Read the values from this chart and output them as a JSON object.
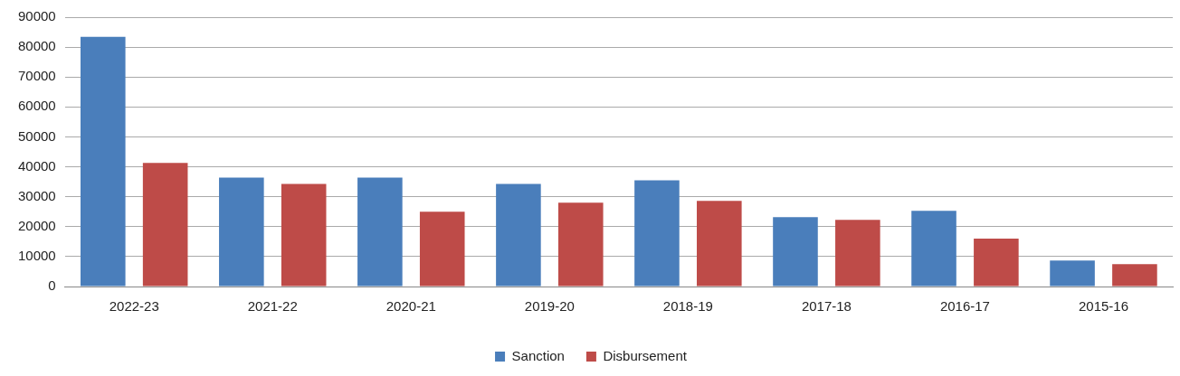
{
  "chart_data": {
    "type": "bar",
    "categories": [
      "2022-23",
      "2021-22",
      "2020-21",
      "2019-20",
      "2018-19",
      "2017-18",
      "2016-17",
      "2015-16"
    ],
    "series": [
      {
        "name": "Sanction",
        "color": "#4a7ebb",
        "values": [
          83400,
          36400,
          36400,
          34300,
          35500,
          23200,
          25300,
          8700
        ]
      },
      {
        "name": "Disbursement",
        "color": "#be4b48",
        "values": [
          41300,
          34300,
          25000,
          28000,
          28600,
          22300,
          16000,
          7500
        ]
      }
    ],
    "ylim": [
      0,
      90000
    ],
    "yticks": [
      0,
      10000,
      20000,
      30000,
      40000,
      50000,
      60000,
      70000,
      80000,
      90000
    ],
    "grid": "y",
    "legend": "bottom"
  }
}
